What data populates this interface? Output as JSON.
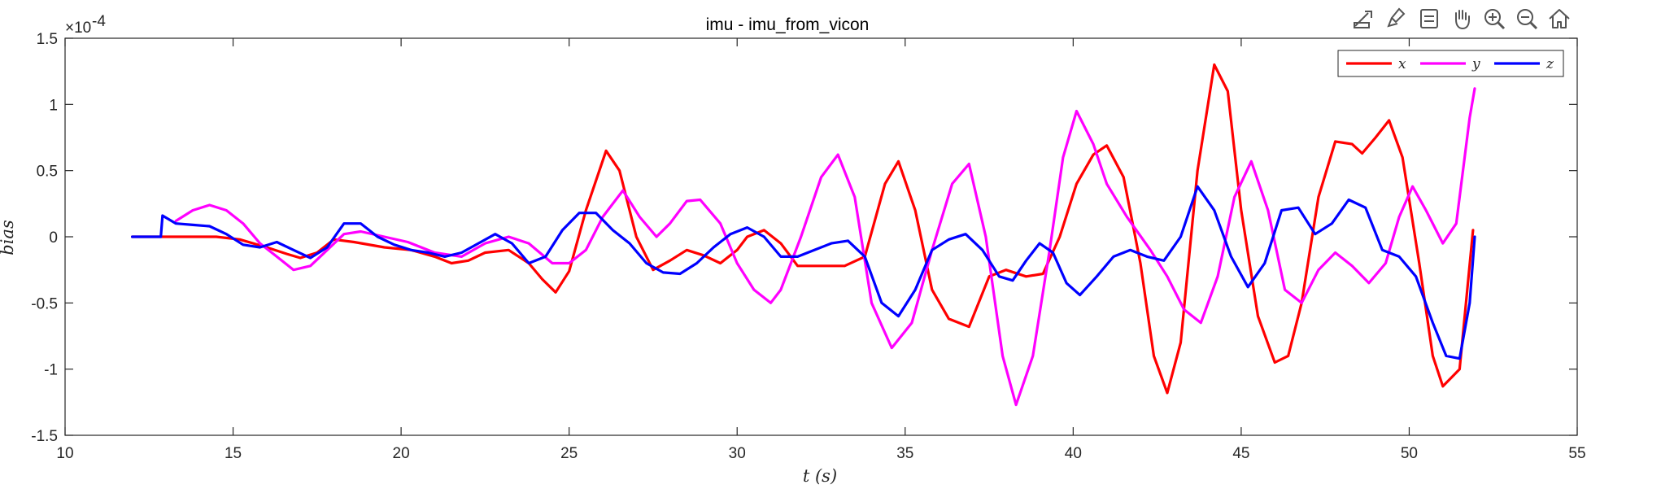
{
  "chart_data": {
    "type": "line",
    "title": "imu - imu_from_vicon",
    "xlabel": "t (s)",
    "ylabel": "bias",
    "xlim": [
      10,
      55
    ],
    "ylim": [
      -1.5,
      1.5
    ],
    "y_exponent_label": "×10",
    "y_exponent_power": "-4",
    "xticks": [
      "10",
      "15",
      "20",
      "25",
      "30",
      "35",
      "40",
      "45",
      "50",
      "55"
    ],
    "yticks": [
      "-1.5",
      "-1",
      "-0.5",
      "0",
      "0.5",
      "1",
      "1.5"
    ],
    "grid": false,
    "legend": {
      "location": "top-right",
      "orientation": "horizontal"
    },
    "series": [
      {
        "name": "x",
        "color": "#ff0000",
        "x": [
          12.0,
          12.9,
          13.5,
          14.5,
          15.2,
          16.0,
          16.6,
          17.0,
          17.5,
          18.0,
          18.6,
          19.5,
          20.3,
          21.0,
          21.5,
          22.0,
          22.5,
          23.2,
          23.8,
          24.2,
          24.6,
          25.0,
          25.5,
          26.1,
          26.5,
          27.0,
          27.5,
          28.0,
          28.5,
          29.0,
          29.5,
          30.0,
          30.3,
          30.8,
          31.3,
          31.8,
          32.5,
          33.2,
          33.8,
          34.4,
          34.8,
          35.3,
          35.8,
          36.3,
          36.9,
          37.5,
          38.0,
          38.6,
          39.1,
          39.6,
          40.1,
          40.6,
          41.0,
          41.5,
          42.0,
          42.4,
          42.8,
          43.2,
          43.7,
          44.2,
          44.6,
          45.0,
          45.5,
          46.0,
          46.4,
          46.8,
          47.3,
          47.8,
          48.3,
          48.6,
          49.0,
          49.4,
          49.8,
          50.3,
          50.7,
          51.0,
          51.5,
          51.9
        ],
        "y": [
          0.0,
          0.0,
          0.0,
          0.0,
          -0.02,
          -0.08,
          -0.13,
          -0.16,
          -0.12,
          -0.02,
          -0.04,
          -0.08,
          -0.1,
          -0.15,
          -0.2,
          -0.18,
          -0.12,
          -0.1,
          -0.2,
          -0.32,
          -0.42,
          -0.26,
          0.2,
          0.65,
          0.5,
          0.0,
          -0.25,
          -0.18,
          -0.1,
          -0.14,
          -0.2,
          -0.1,
          0.0,
          0.05,
          -0.05,
          -0.22,
          -0.22,
          -0.22,
          -0.15,
          0.4,
          0.57,
          0.2,
          -0.4,
          -0.62,
          -0.68,
          -0.3,
          -0.25,
          -0.3,
          -0.28,
          0.0,
          0.4,
          0.62,
          0.69,
          0.45,
          -0.2,
          -0.9,
          -1.18,
          -0.8,
          0.5,
          1.3,
          1.1,
          0.2,
          -0.6,
          -0.95,
          -0.9,
          -0.5,
          0.3,
          0.72,
          0.7,
          0.63,
          0.75,
          0.88,
          0.6,
          -0.2,
          -0.9,
          -1.13,
          -1.0,
          0.05
        ]
      },
      {
        "name": "y",
        "color": "#ff00ff",
        "x": [
          13.3,
          13.8,
          14.3,
          14.8,
          15.3,
          15.8,
          16.3,
          16.8,
          17.3,
          17.8,
          18.3,
          18.8,
          19.5,
          20.2,
          21.0,
          21.8,
          22.5,
          23.2,
          23.8,
          24.5,
          25.0,
          25.5,
          26.0,
          26.6,
          27.1,
          27.6,
          28.0,
          28.5,
          28.9,
          29.5,
          30.0,
          30.5,
          31.0,
          31.3,
          31.9,
          32.5,
          33.0,
          33.5,
          34.0,
          34.6,
          35.2,
          35.8,
          36.4,
          36.9,
          37.4,
          37.9,
          38.3,
          38.8,
          39.3,
          39.7,
          40.1,
          40.6,
          41.0,
          41.6,
          42.3,
          42.8,
          43.3,
          43.8,
          44.3,
          44.8,
          45.3,
          45.8,
          46.3,
          46.8,
          47.3,
          47.8,
          48.3,
          48.8,
          49.3,
          49.7,
          50.1,
          50.5,
          51.0,
          51.4,
          51.8,
          51.95
        ],
        "y": [
          0.12,
          0.2,
          0.24,
          0.2,
          0.1,
          -0.05,
          -0.15,
          -0.25,
          -0.22,
          -0.1,
          0.02,
          0.04,
          0.0,
          -0.04,
          -0.12,
          -0.15,
          -0.05,
          0.0,
          -0.05,
          -0.2,
          -0.2,
          -0.1,
          0.15,
          0.35,
          0.15,
          0.0,
          0.1,
          0.27,
          0.28,
          0.1,
          -0.2,
          -0.4,
          -0.5,
          -0.4,
          0.0,
          0.45,
          0.62,
          0.3,
          -0.5,
          -0.84,
          -0.65,
          -0.1,
          0.4,
          0.55,
          0.0,
          -0.9,
          -1.27,
          -0.9,
          -0.1,
          0.6,
          0.95,
          0.7,
          0.4,
          0.15,
          -0.1,
          -0.3,
          -0.55,
          -0.65,
          -0.3,
          0.3,
          0.57,
          0.2,
          -0.4,
          -0.5,
          -0.25,
          -0.12,
          -0.22,
          -0.35,
          -0.2,
          0.15,
          0.38,
          0.2,
          -0.05,
          0.1,
          0.9,
          1.12
        ]
      },
      {
        "name": "z",
        "color": "#0000ff",
        "x": [
          12.0,
          12.85,
          12.9,
          13.3,
          13.8,
          14.3,
          14.8,
          15.3,
          15.8,
          16.3,
          16.8,
          17.3,
          17.8,
          18.3,
          18.8,
          19.3,
          19.8,
          20.3,
          20.8,
          21.3,
          21.8,
          22.3,
          22.8,
          23.3,
          23.8,
          24.3,
          24.8,
          25.3,
          25.8,
          26.3,
          26.8,
          27.3,
          27.8,
          28.3,
          28.8,
          29.3,
          29.8,
          30.3,
          30.8,
          31.3,
          31.8,
          32.3,
          32.8,
          33.3,
          33.8,
          34.3,
          34.8,
          35.3,
          35.8,
          36.3,
          36.8,
          37.3,
          37.8,
          38.2,
          38.6,
          39.0,
          39.4,
          39.8,
          40.2,
          40.7,
          41.2,
          41.7,
          42.2,
          42.7,
          43.2,
          43.7,
          44.2,
          44.7,
          45.2,
          45.7,
          46.2,
          46.7,
          47.2,
          47.7,
          48.2,
          48.7,
          49.2,
          49.7,
          50.2,
          50.7,
          51.1,
          51.5,
          51.8,
          51.95
        ],
        "y": [
          0.0,
          0.0,
          0.16,
          0.1,
          0.09,
          0.08,
          0.02,
          -0.06,
          -0.08,
          -0.04,
          -0.1,
          -0.16,
          -0.08,
          0.1,
          0.1,
          0.0,
          -0.06,
          -0.1,
          -0.12,
          -0.15,
          -0.12,
          -0.05,
          0.02,
          -0.05,
          -0.2,
          -0.15,
          0.05,
          0.18,
          0.18,
          0.05,
          -0.05,
          -0.2,
          -0.27,
          -0.28,
          -0.2,
          -0.08,
          0.02,
          0.07,
          0.0,
          -0.15,
          -0.15,
          -0.1,
          -0.05,
          -0.03,
          -0.15,
          -0.5,
          -0.6,
          -0.4,
          -0.1,
          -0.02,
          0.02,
          -0.1,
          -0.3,
          -0.33,
          -0.18,
          -0.05,
          -0.12,
          -0.35,
          -0.44,
          -0.3,
          -0.15,
          -0.1,
          -0.15,
          -0.18,
          0.0,
          0.38,
          0.2,
          -0.15,
          -0.38,
          -0.2,
          0.2,
          0.22,
          0.02,
          0.1,
          0.28,
          0.22,
          -0.1,
          -0.15,
          -0.3,
          -0.65,
          -0.9,
          -0.92,
          -0.5,
          0.0
        ]
      }
    ]
  },
  "toolbar": {
    "icons": [
      "export-icon",
      "brush-icon",
      "datatip-icon",
      "pan-icon",
      "zoom-in-icon",
      "zoom-out-icon",
      "home-icon"
    ]
  }
}
